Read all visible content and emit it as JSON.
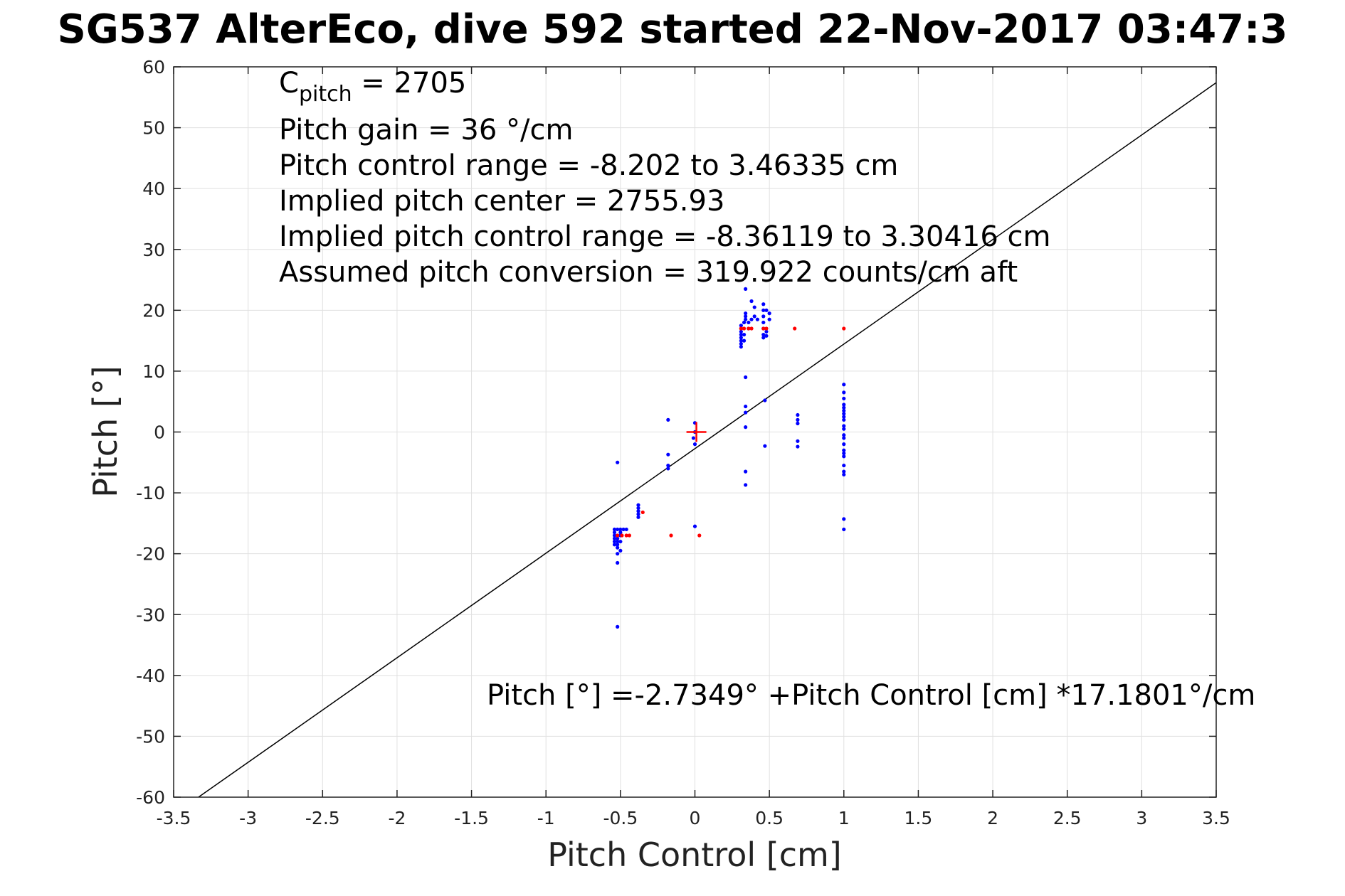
{
  "chart_data": {
    "type": "scatter",
    "title": "SG537 AlterEco, dive 592 started 22-Nov-2017 03:47:3",
    "xlabel": "Pitch Control [cm]",
    "ylabel": "Pitch [°]",
    "xlim": [
      -3.5,
      3.5
    ],
    "ylim": [
      -60,
      60
    ],
    "grid": true,
    "x_ticks": [
      -3.5,
      -3,
      -2.5,
      -2,
      -1.5,
      -1,
      -0.5,
      0,
      0.5,
      1,
      1.5,
      2,
      2.5,
      3,
      3.5
    ],
    "x_tick_labels": [
      "-3.5",
      "-3",
      "-2.5",
      "-2",
      "-1.5",
      "-1",
      "-0.5",
      "0",
      "0.5",
      "1",
      "1.5",
      "2",
      "2.5",
      "3",
      "3.5"
    ],
    "y_ticks": [
      60,
      50,
      40,
      30,
      20,
      10,
      0,
      -10,
      -20,
      -30,
      -40,
      -50,
      -60
    ],
    "y_tick_labels": [
      "60",
      "50",
      "40",
      "30",
      "20",
      "10",
      "0",
      "-10",
      "-20",
      "-30",
      "-40",
      "-50",
      "-60"
    ],
    "annotations": {
      "c_pitch_main": "C",
      "c_pitch_sub": "pitch",
      "c_pitch_value": " = 2705",
      "lines": [
        "Pitch gain = 36 °/cm",
        "Pitch control range = -8.202 to 3.46335 cm",
        "Implied pitch center = 2755.93",
        "Implied pitch control range = -8.36119 to 3.30416 cm",
        "Assumed pitch conversion = 319.922 counts/cm aft"
      ],
      "fit_equation": "Pitch [°] =-2.7349° +Pitch Control [cm] *17.1801°/cm"
    },
    "fit_line": {
      "intercept": -2.7349,
      "slope": 17.1801,
      "color": "#000000"
    },
    "center_marker": {
      "x": 0.01,
      "y": 0,
      "color": "#ff0000"
    },
    "series": [
      {
        "color": "#0000ff",
        "points": [
          [
            -0.54,
            -16
          ],
          [
            -0.52,
            -16
          ],
          [
            -0.5,
            -16
          ],
          [
            -0.48,
            -16
          ],
          [
            -0.54,
            -16.5
          ],
          [
            -0.5,
            -16.5
          ],
          [
            -0.54,
            -17
          ],
          [
            -0.52,
            -17
          ],
          [
            -0.5,
            -17
          ],
          [
            -0.54,
            -17.5
          ],
          [
            -0.52,
            -17.5
          ],
          [
            -0.54,
            -18
          ],
          [
            -0.52,
            -18
          ],
          [
            -0.5,
            -18
          ],
          [
            -0.54,
            -18.5
          ],
          [
            -0.52,
            -18.5
          ],
          [
            -0.52,
            -19
          ],
          [
            -0.5,
            -19.5
          ],
          [
            -0.52,
            -20
          ],
          [
            -0.52,
            -21.5
          ],
          [
            -0.52,
            -32
          ],
          [
            -0.52,
            -5
          ],
          [
            -0.46,
            -16
          ],
          [
            -0.38,
            -12
          ],
          [
            -0.38,
            -12.5
          ],
          [
            -0.38,
            -13
          ],
          [
            -0.38,
            -13.5
          ],
          [
            -0.38,
            -14
          ],
          [
            -0.18,
            2
          ],
          [
            -0.18,
            -3.7
          ],
          [
            -0.18,
            -5.5
          ],
          [
            -0.18,
            -6
          ],
          [
            0,
            1.5
          ],
          [
            0,
            0
          ],
          [
            -0.01,
            -1
          ],
          [
            0,
            -2
          ],
          [
            0,
            -15.5
          ],
          [
            0.31,
            14
          ],
          [
            0.31,
            14.5
          ],
          [
            0.31,
            15
          ],
          [
            0.31,
            15.5
          ],
          [
            0.31,
            16
          ],
          [
            0.31,
            16.5
          ],
          [
            0.31,
            17
          ],
          [
            0.31,
            17.5
          ],
          [
            0.33,
            15
          ],
          [
            0.33,
            16
          ],
          [
            0.33,
            18
          ],
          [
            0.34,
            18.5
          ],
          [
            0.34,
            19
          ],
          [
            0.34,
            19.5
          ],
          [
            0.34,
            23.5
          ],
          [
            0.36,
            17
          ],
          [
            0.36,
            18
          ],
          [
            0.38,
            18.5
          ],
          [
            0.38,
            21.5
          ],
          [
            0.4,
            19
          ],
          [
            0.4,
            20.5
          ],
          [
            0.42,
            18.5
          ],
          [
            0.46,
            15.5
          ],
          [
            0.46,
            16
          ],
          [
            0.46,
            17
          ],
          [
            0.46,
            18
          ],
          [
            0.46,
            19
          ],
          [
            0.46,
            20
          ],
          [
            0.46,
            21
          ],
          [
            0.48,
            15.8
          ],
          [
            0.48,
            16.5
          ],
          [
            0.48,
            20
          ],
          [
            0.5,
            18.5
          ],
          [
            0.5,
            19.5
          ],
          [
            0.34,
            9
          ],
          [
            0.34,
            4.2
          ],
          [
            0.34,
            3.2
          ],
          [
            0.34,
            0.8
          ],
          [
            0.34,
            -6.5
          ],
          [
            0.34,
            -8.7
          ],
          [
            0.47,
            5.2
          ],
          [
            0.47,
            -2.3
          ],
          [
            0.69,
            2.8
          ],
          [
            0.69,
            2
          ],
          [
            0.69,
            1.4
          ],
          [
            0.69,
            -1.5
          ],
          [
            0.69,
            -2.4
          ],
          [
            1,
            7.8
          ],
          [
            1,
            6.5
          ],
          [
            1,
            5.5
          ],
          [
            1,
            4.5
          ],
          [
            1,
            4
          ],
          [
            1,
            3.5
          ],
          [
            1,
            3
          ],
          [
            1,
            2.5
          ],
          [
            1,
            2
          ],
          [
            1,
            1
          ],
          [
            1,
            0.5
          ],
          [
            1,
            -0.5
          ],
          [
            1,
            -1
          ],
          [
            1,
            -2
          ],
          [
            1,
            -3
          ],
          [
            1,
            -3.5
          ],
          [
            1,
            -4
          ],
          [
            1,
            -5.5
          ],
          [
            1,
            -6.5
          ],
          [
            1,
            -7
          ],
          [
            1,
            -14.3
          ],
          [
            1,
            -16
          ]
        ]
      },
      {
        "color": "#ff0000",
        "points": [
          [
            -0.52,
            -17
          ],
          [
            -0.49,
            -17
          ],
          [
            -0.46,
            -17
          ],
          [
            -0.44,
            -17
          ],
          [
            -0.35,
            -13.2
          ],
          [
            -0.16,
            -17
          ],
          [
            0.03,
            -17
          ],
          [
            0.31,
            17
          ],
          [
            0.33,
            17
          ],
          [
            0.36,
            17
          ],
          [
            0.38,
            17
          ],
          [
            0.46,
            17
          ],
          [
            0.48,
            17
          ],
          [
            0.67,
            17
          ],
          [
            1,
            17
          ]
        ]
      }
    ]
  }
}
